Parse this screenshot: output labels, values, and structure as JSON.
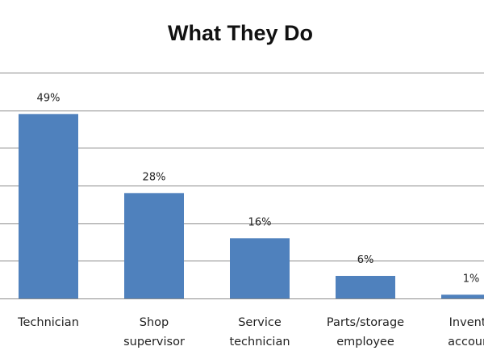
{
  "chart_data": {
    "type": "bar",
    "title": "What They Do",
    "categories": [
      [
        "Technician"
      ],
      [
        "Shop",
        "supervisor"
      ],
      [
        "Service",
        "technician"
      ],
      [
        "Parts/storage",
        "employee"
      ],
      [
        "Invento",
        "account"
      ]
    ],
    "values": [
      49,
      28,
      16,
      6,
      1
    ],
    "data_labels": [
      "49%",
      "28%",
      "16%",
      "6%",
      "1%"
    ],
    "xlabel": "",
    "ylabel": "",
    "ylim": [
      0,
      60
    ],
    "grid": true,
    "legend": "none",
    "colors": {
      "bar": "#4f81bd",
      "grid": "#8c8c8c",
      "text": "#222222"
    }
  }
}
